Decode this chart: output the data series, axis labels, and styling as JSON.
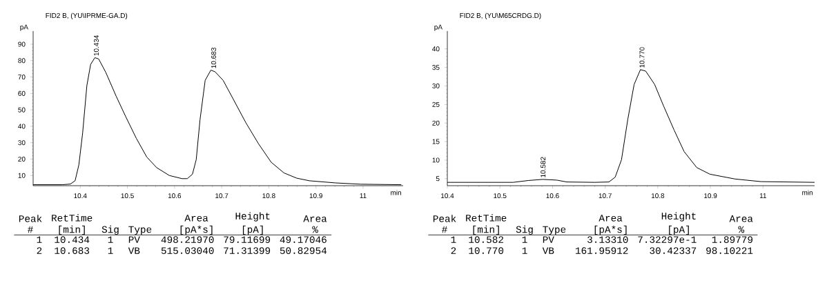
{
  "chart_data": [
    {
      "type": "line",
      "title": "FID2 B, (YU\\IPRME-GA.D)",
      "xlabel": "min",
      "ylabel": "pA",
      "x": [
        10.3,
        10.362,
        10.379,
        10.389,
        10.397,
        10.405,
        10.414,
        10.422,
        10.431,
        10.439,
        10.454,
        10.476,
        10.497,
        10.519,
        10.541,
        10.562,
        10.589,
        10.616,
        10.627,
        10.638,
        10.646,
        10.654,
        10.665,
        10.677,
        10.686,
        10.703,
        10.724,
        10.751,
        10.778,
        10.805,
        10.832,
        10.859,
        10.886,
        10.941,
        10.995,
        11.081
      ],
      "series": [
        {
          "color": "#000000",
          "values": [
            4.4,
            4.4,
            4.8,
            6.8,
            16.5,
            35.8,
            64.8,
            77.7,
            81.8,
            81,
            72.9,
            58.4,
            45.5,
            32.6,
            21.3,
            14.8,
            10,
            8.1,
            8.1,
            10.8,
            19.7,
            43.9,
            68,
            74.2,
            73.2,
            68,
            56.8,
            42.3,
            29.4,
            18.1,
            11.6,
            8.4,
            6.8,
            5.5,
            4.7,
            4.4
          ]
        }
      ],
      "xlim": [
        10.3,
        11.085
      ],
      "xticks": [
        10.4,
        10.5,
        10.6,
        10.7,
        10.8,
        10.9,
        11
      ],
      "ylim": [
        3.8,
        98
      ],
      "yticks": [
        10,
        20,
        30,
        40,
        50,
        60,
        70,
        80,
        90
      ],
      "marker": "none",
      "line_style": "solid",
      "annotations": [
        {
          "text": "10.434",
          "x": 10.434,
          "y": 81.8
        },
        {
          "text": "10.683",
          "x": 10.683,
          "y": 74.2
        },
        "Peak",
        "#",
        "RetTime",
        "[min]",
        "Sig",
        "Type",
        "Area",
        "[pA*s]",
        "Height",
        "[pA]",
        "Area",
        "%",
        "1",
        "10.434",
        "1",
        "PV",
        "498.21970",
        "79.11699",
        "49.17046",
        "2",
        "10.683",
        "1",
        "VB",
        "515.03040",
        "71.31399",
        "50.82954"
      ]
    },
    {
      "type": "line",
      "title": "FID2 B, (YU\\M65CRDG.D)",
      "xlabel": "min",
      "ylabel": "pA",
      "x": [
        10.4,
        10.525,
        10.554,
        10.581,
        10.608,
        10.627,
        10.68,
        10.707,
        10.719,
        10.731,
        10.743,
        10.755,
        10.767,
        10.777,
        10.794,
        10.811,
        10.831,
        10.85,
        10.874,
        10.899,
        10.947,
        10.996,
        11.098
      ],
      "series": [
        {
          "color": "#000000",
          "values": [
            4.0,
            4.0,
            4.5,
            4.8,
            4.6,
            4.1,
            4.0,
            4.1,
            5.4,
            10.1,
            21,
            30.4,
            34.4,
            34,
            30.4,
            24.6,
            18.1,
            12.3,
            8,
            6.2,
            4.9,
            4.2,
            4.0
          ]
        }
      ],
      "xlim": [
        10.4,
        11.098
      ],
      "xticks": [
        10.4,
        10.5,
        10.6,
        10.7,
        10.8,
        10.9,
        11
      ],
      "ylim": [
        3.1,
        44.8
      ],
      "yticks": [
        5,
        10,
        15,
        20,
        25,
        30,
        35,
        40
      ],
      "marker": "none",
      "line_style": "solid",
      "annotations": [
        {
          "text": "10.582",
          "x": 10.582,
          "y": 4.8
        },
        {
          "text": "10.770",
          "x": 10.77,
          "y": 34.4
        },
        "Peak",
        "#",
        "RetTime",
        "[min]",
        "Sig",
        "Type",
        "Area",
        "[pA*s]",
        "Height",
        "[pA]",
        "Area",
        "%",
        "1",
        "10.582",
        "1",
        "PV",
        "3.13310",
        "7.32297e-1",
        "1.89779",
        "2",
        "10.770",
        "1",
        "VB",
        "161.95912",
        "30.42337",
        "98.10221"
      ]
    }
  ]
}
